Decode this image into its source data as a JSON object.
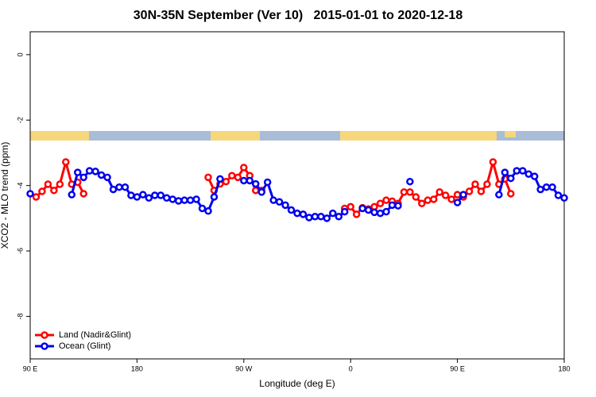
{
  "chart_data": {
    "type": "line",
    "title": "30N-35N September (Ver 10)   2015-01-01 to 2020-12-18",
    "x_label": "Longitude (deg E)",
    "y_label": "XCO2 - MLO trend (ppm)",
    "x": [
      90,
      95,
      100,
      105,
      110,
      115,
      120,
      125,
      130,
      135,
      140,
      145,
      150,
      155,
      160,
      165,
      170,
      175,
      180,
      185,
      190,
      195,
      200,
      205,
      210,
      215,
      220,
      225,
      230,
      235,
      240,
      245,
      250,
      255,
      260,
      265,
      270,
      275,
      280,
      285,
      290,
      295,
      300,
      305,
      310,
      315,
      320,
      325,
      330,
      335,
      340,
      345,
      350,
      355,
      360,
      365,
      370,
      375,
      380,
      385,
      390,
      395,
      400,
      405,
      410,
      415,
      420,
      425,
      430,
      435,
      440,
      445,
      450,
      455,
      460,
      465,
      470,
      475,
      480,
      485,
      490,
      495,
      500,
      505,
      510,
      515,
      520,
      525,
      530,
      535,
      540
    ],
    "xlim": [
      90,
      540
    ],
    "xticks": [
      {
        "value": 90,
        "label": "90 E"
      },
      180,
      {
        "value": 270,
        "label": "90 W"
      },
      {
        "value": 360,
        "label": "0"
      },
      {
        "value": 450,
        "label": "90 E"
      },
      {
        "value": 540,
        "label": "180"
      }
    ],
    "ylim": [
      -9.3,
      0.7
    ],
    "yticks": [
      -8,
      -6,
      -4,
      -2,
      0
    ],
    "legend": "bottom-left",
    "series": [
      {
        "name": "Land (Nadir&Glint)",
        "color": "#ff0000",
        "values": [
          null,
          -4.35,
          -4.18,
          -3.96,
          -4.15,
          -3.96,
          -3.28,
          -3.96,
          -3.9,
          -4.25,
          null,
          null,
          null,
          null,
          null,
          null,
          null,
          null,
          null,
          null,
          null,
          null,
          null,
          null,
          null,
          null,
          null,
          null,
          null,
          null,
          -3.75,
          -4.15,
          -3.95,
          -3.88,
          -3.7,
          -3.75,
          -3.45,
          -3.7,
          -4.15,
          -4.15,
          null,
          null,
          null,
          null,
          null,
          null,
          null,
          null,
          null,
          null,
          null,
          null,
          null,
          -4.7,
          -4.65,
          -4.88,
          -4.68,
          -4.72,
          -4.65,
          -4.55,
          -4.45,
          -4.48,
          -4.55,
          -4.2,
          -4.2,
          -4.35,
          -4.55,
          -4.45,
          -4.42,
          -4.2,
          -4.3,
          -4.42,
          -4.28,
          -4.35,
          -4.18,
          -3.96,
          -4.18,
          -3.96,
          -3.28,
          -3.96,
          -3.8,
          -4.25,
          null,
          null,
          null,
          null,
          null,
          null,
          null,
          null,
          null
        ]
      },
      {
        "name": "Ocean (Glint)",
        "color": "#0000ee",
        "values": [
          -4.25,
          null,
          null,
          null,
          null,
          null,
          null,
          -4.28,
          -3.6,
          -3.75,
          -3.55,
          -3.57,
          -3.68,
          -3.75,
          -4.12,
          -4.05,
          -4.05,
          -4.3,
          -4.35,
          -4.28,
          -4.38,
          -4.3,
          -4.3,
          -4.38,
          -4.42,
          -4.47,
          -4.45,
          -4.45,
          -4.42,
          -4.7,
          -4.78,
          -4.35,
          -3.8,
          null,
          null,
          null,
          -3.85,
          -3.85,
          -3.95,
          -4.2,
          -3.9,
          -4.45,
          -4.5,
          -4.6,
          -4.75,
          -4.85,
          -4.88,
          -4.98,
          -4.95,
          -4.95,
          -5.0,
          -4.85,
          -4.95,
          -4.8,
          null,
          null,
          -4.7,
          -4.75,
          -4.82,
          -4.85,
          -4.8,
          -4.6,
          -4.62,
          null,
          -3.88,
          null,
          null,
          null,
          null,
          null,
          null,
          null,
          -4.52,
          -4.28,
          null,
          null,
          null,
          null,
          null,
          -4.28,
          -3.6,
          -3.78,
          -3.55,
          -3.55,
          -3.65,
          -3.72,
          -4.12,
          -4.05,
          -4.05,
          -4.3,
          -4.38
        ]
      }
    ]
  }
}
